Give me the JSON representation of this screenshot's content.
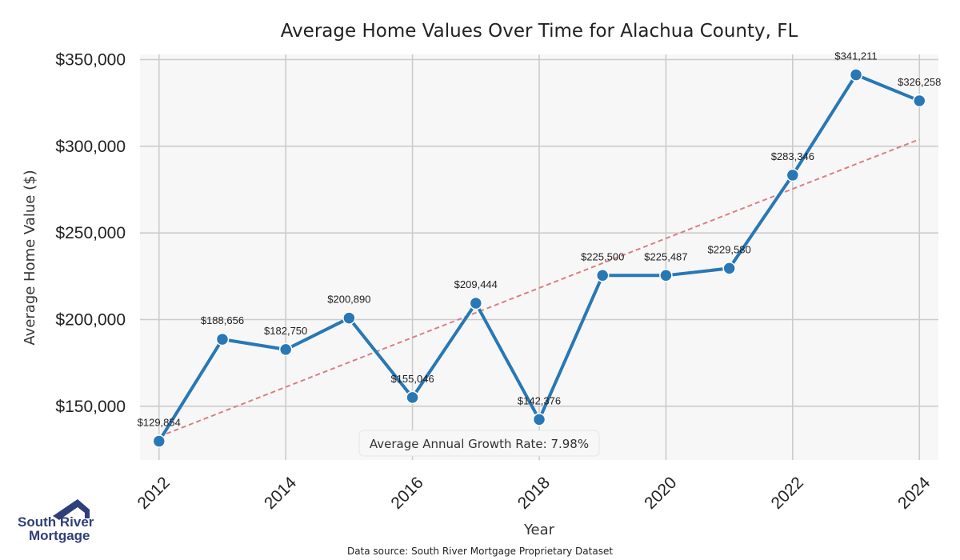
{
  "chart_data": {
    "type": "line",
    "title": "Average Home Values Over Time for Alachua County, FL",
    "xlabel": "Year",
    "ylabel": "Average Home Value ($)",
    "x": [
      2012,
      2013,
      2014,
      2015,
      2016,
      2017,
      2018,
      2019,
      2020,
      2021,
      2022,
      2023,
      2024
    ],
    "values": [
      129854,
      188656,
      182750,
      200890,
      155046,
      209444,
      142376,
      225500,
      225487,
      229580,
      283346,
      341211,
      326258
    ],
    "data_labels": [
      "$129,854",
      "$188,656",
      "$182,750",
      "$200,890",
      "$155,046",
      "$209,444",
      "$142,376",
      "$225,500",
      "$225,487",
      "$229,580",
      "$283,346",
      "$341,211",
      "$326,258"
    ],
    "xticks": [
      "2012",
      "2014",
      "2016",
      "2018",
      "2020",
      "2022",
      "2024"
    ],
    "yticks": [
      150000,
      200000,
      250000,
      300000,
      350000
    ],
    "ytick_labels": [
      "$150,000",
      "$200,000",
      "$250,000",
      "$300,000",
      "$350,000"
    ],
    "xlim": [
      2011.7,
      2024.3
    ],
    "ylim": [
      119000,
      353000
    ],
    "trendline": {
      "start": 132500,
      "end": 304000
    },
    "annotation": "Average Annual Growth Rate: 7.98%",
    "grid": true,
    "colors": {
      "line": "#2878b5",
      "trend": "#d98080",
      "background": "#f7f7f7",
      "grid": "#cccccc"
    }
  },
  "footer": {
    "source": "Data source: South River Mortgage Proprietary Dataset",
    "logo_line1": "South River",
    "logo_line2": "Mortgage"
  }
}
